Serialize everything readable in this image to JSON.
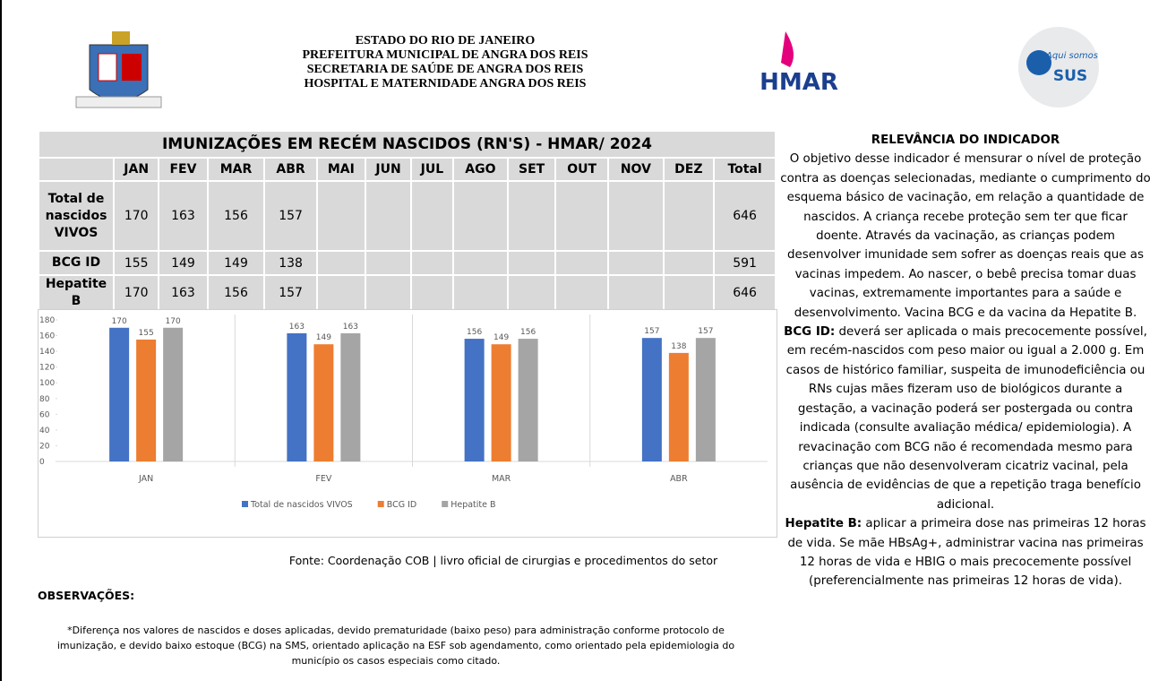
{
  "header": {
    "lines": [
      "ESTADO DO RIO DE JANEIRO",
      "PREFEITURA MUNICIPAL DE ANGRA DOS REIS",
      "SECRETARIA DE SAÚDE DE ANGRA DOS REIS",
      "HOSPITAL E MATERNIDADE ANGRA DOS REIS"
    ],
    "hmar_logo": "HMAR",
    "sus_logo": {
      "small": "Aqui somos",
      "big": "SUS"
    }
  },
  "table": {
    "title": "IMUNIZAÇÕES EM RECÉM NASCIDOS (RN'S) - HMAR/ 2024",
    "columns": [
      "JAN",
      "FEV",
      "MAR",
      "ABR",
      "MAI",
      "JUN",
      "JUL",
      "AGO",
      "SET",
      "OUT",
      "NOV",
      "DEZ",
      "Total"
    ],
    "rows": [
      {
        "label": "Total de nascidos VIVOS",
        "values": [
          170,
          163,
          156,
          157,
          null,
          null,
          null,
          null,
          null,
          null,
          null,
          null,
          646
        ]
      },
      {
        "label": "BCG ID",
        "values": [
          155,
          149,
          149,
          138,
          null,
          null,
          null,
          null,
          null,
          null,
          null,
          null,
          591
        ]
      },
      {
        "label": "Hepatite B",
        "values": [
          170,
          163,
          156,
          157,
          null,
          null,
          null,
          null,
          null,
          null,
          null,
          null,
          646
        ]
      }
    ]
  },
  "chart_data": {
    "type": "bar",
    "categories": [
      "JAN",
      "FEV",
      "MAR",
      "ABR"
    ],
    "series": [
      {
        "name": "Total de nascidos VIVOS",
        "color": "#4472c4",
        "values": [
          170,
          163,
          156,
          157
        ]
      },
      {
        "name": "BCG ID",
        "color": "#ed7d31",
        "values": [
          155,
          149,
          149,
          138
        ]
      },
      {
        "name": "Hepatite B",
        "color": "#a5a5a5",
        "values": [
          170,
          163,
          156,
          157
        ]
      }
    ],
    "ylim": [
      0,
      180
    ],
    "yticks": [
      0,
      20,
      40,
      60,
      80,
      100,
      120,
      140,
      160,
      180
    ],
    "grid": false,
    "legend": "bottom"
  },
  "source": "Fonte: Coordenação COB | livro oficial de cirurgias e procedimentos do setor",
  "observations": {
    "title": "OBSERVAÇÕES:",
    "text": "*Diferença nos valores de nascidos e doses aplicadas, devido prematuridade (baixo peso) para administração conforme protocolo de imunização, e devido baixo estoque (BCG) na SMS, orientado aplicação na ESF sob agendamento, como orientado pela epidemiologia do município os casos especiais como citado."
  },
  "relevance": {
    "title": "RELEVÂNCIA DO INDICADOR",
    "paragraphs": [
      {
        "label": null,
        "text": "O objetivo desse indicador é mensurar o nível de proteção contra as doenças selecionadas, mediante o cumprimento do esquema básico de vacinação, em relação a quantidade de nascidos. A criança recebe proteção sem ter que ficar doente. Através da vacinação, as crianças podem desenvolver imunidade sem sofrer as doenças reais que as vacinas impedem. Ao nascer, o bebê precisa tomar duas vacinas, extremamente importantes para a saúde e desenvolvimento. Vacina BCG e da vacina da Hepatite B."
      },
      {
        "label": "BCG ID:",
        "text": "deverá ser aplicada o mais precocemente possível, em recém-nascidos com peso maior ou igual a 2.000 g. Em casos de histórico familiar, suspeita de imunodeficiência ou RNs cujas mães fizeram uso de biológicos durante a gestação, a vacinação poderá ser postergada ou contra indicada (consulte avaliação médica/ epidemiologia). A revacinação com BCG não é recomendada mesmo para crianças que não desenvolveram cicatriz vacinal, pela ausência de evidências de que a repetição traga benefício adicional."
      },
      {
        "label": "Hepatite B:",
        "text": "aplicar a primeira dose nas primeiras 12 horas de vida. Se mãe HBsAg+, administrar vacina nas primeiras 12 horas de vida e HBIG o mais precocemente possível (preferencialmente nas primeiras 12 horas de vida)."
      }
    ]
  }
}
